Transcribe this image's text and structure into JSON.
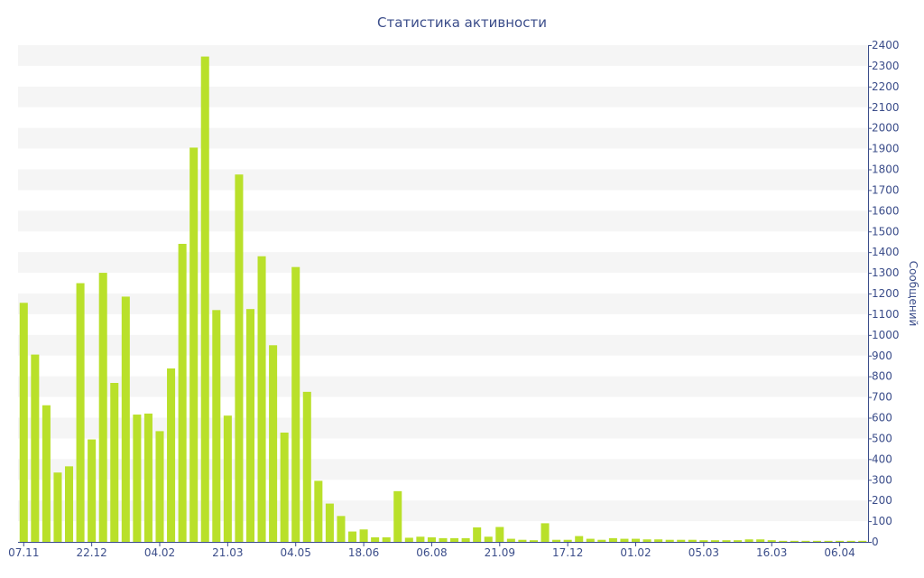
{
  "chart_data": {
    "type": "bar",
    "title": "Статистика активности",
    "ylabel": "Сообщений",
    "xlabel": "",
    "ylim": [
      0,
      2400
    ],
    "y_tick_step": 100,
    "y_axis_side": "right",
    "grid": "horizontal alternating bands",
    "bar_color": "#b9e02a",
    "band_color": "#f5f5f5",
    "text_color": "#3b4d8a",
    "x_tick_labels": [
      {
        "index": 0,
        "label": "07.11"
      },
      {
        "index": 6,
        "label": "22.12"
      },
      {
        "index": 12,
        "label": "04.02"
      },
      {
        "index": 18,
        "label": "21.03"
      },
      {
        "index": 24,
        "label": "04.05"
      },
      {
        "index": 30,
        "label": "18.06"
      },
      {
        "index": 36,
        "label": "06.08"
      },
      {
        "index": 42,
        "label": "21.09"
      },
      {
        "index": 48,
        "label": "17.12"
      },
      {
        "index": 54,
        "label": "01.02"
      },
      {
        "index": 60,
        "label": "05.03"
      },
      {
        "index": 66,
        "label": "16.03"
      },
      {
        "index": 72,
        "label": "06.04"
      }
    ],
    "values": [
      1155,
      905,
      660,
      335,
      365,
      1250,
      495,
      1300,
      768,
      1185,
      615,
      620,
      535,
      838,
      1440,
      1905,
      2345,
      1120,
      610,
      1775,
      1125,
      1380,
      950,
      528,
      1328,
      725,
      295,
      185,
      125,
      50,
      60,
      22,
      22,
      245,
      20,
      25,
      22,
      18,
      18,
      18,
      70,
      25,
      72,
      15,
      10,
      8,
      90,
      10,
      10,
      28,
      15,
      10,
      18,
      15,
      15,
      12,
      12,
      10,
      10,
      10,
      8,
      8,
      8,
      8,
      12,
      12,
      8,
      5,
      5,
      5,
      5,
      5,
      5,
      5,
      5
    ]
  }
}
